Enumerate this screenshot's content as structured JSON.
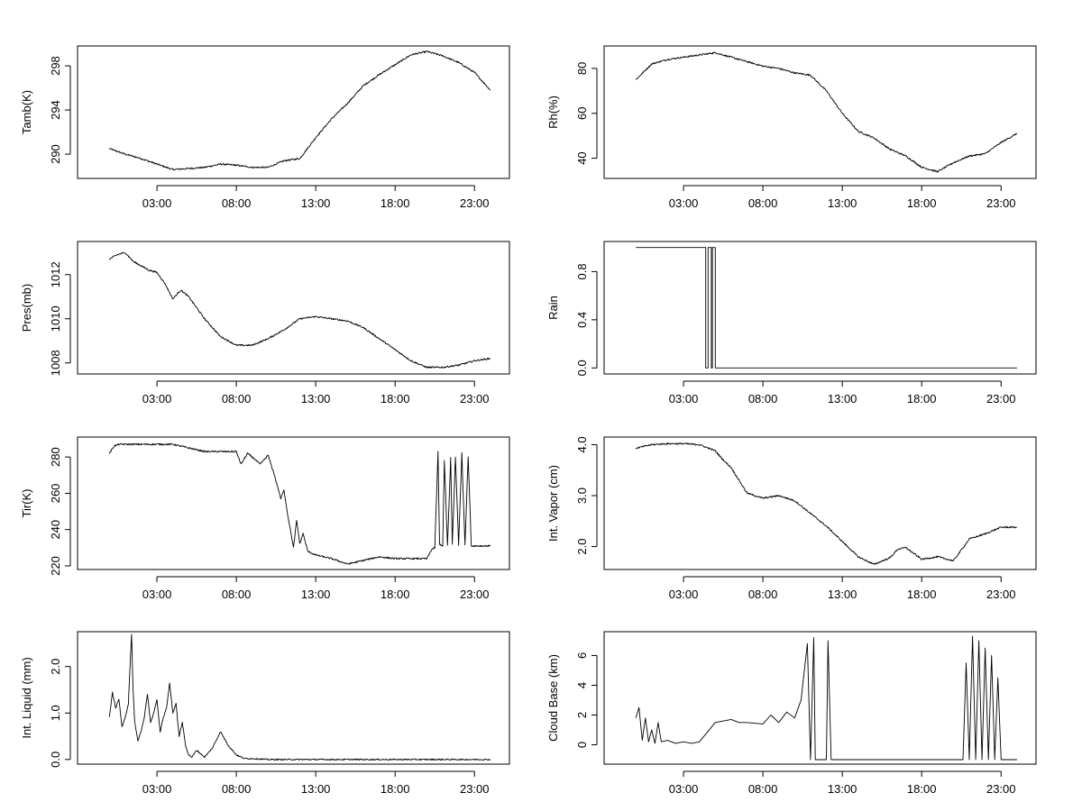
{
  "figure": {
    "description": "Eight stacked time-series panels (2 columns x 4 rows)"
  },
  "chart_data": [
    {
      "type": "line",
      "ylabel": "Tamb(K)",
      "ylim": [
        287.8,
        299.8
      ],
      "yticks": [
        290,
        294,
        298
      ],
      "yticklabels": [
        "290",
        "294",
        "298"
      ],
      "xlim": [
        -2.0,
        25.2
      ],
      "xticks": [
        3,
        8,
        13,
        18,
        23
      ],
      "xticklabels": [
        "03:00",
        "08:00",
        "13:00",
        "18:00",
        "23:00"
      ],
      "series": [
        {
          "name": "Tamb",
          "x": [
            0,
            1,
            2,
            3,
            4,
            5,
            6,
            7,
            8,
            9,
            10,
            11,
            12,
            13,
            14,
            15,
            16,
            17,
            18,
            19,
            20,
            21,
            22,
            23,
            24
          ],
          "y": [
            290.5,
            290.0,
            289.6,
            289.1,
            288.6,
            288.7,
            288.8,
            289.1,
            289.0,
            288.8,
            288.8,
            289.4,
            289.6,
            291.5,
            293.2,
            294.6,
            296.2,
            297.2,
            298.1,
            299.0,
            299.3,
            298.9,
            298.3,
            297.4,
            295.8
          ]
        }
      ]
    },
    {
      "type": "line",
      "ylabel": "Rh(%)",
      "ylim": [
        31,
        90
      ],
      "yticks": [
        40,
        60,
        80
      ],
      "yticklabels": [
        "40",
        "60",
        "80"
      ],
      "xlim": [
        -2.0,
        25.2
      ],
      "xticks": [
        3,
        8,
        13,
        18,
        23
      ],
      "xticklabels": [
        "03:00",
        "08:00",
        "13:00",
        "18:00",
        "23:00"
      ],
      "series": [
        {
          "name": "Rh",
          "x": [
            0,
            1,
            2,
            3,
            4,
            5,
            6,
            7,
            8,
            9,
            10,
            11,
            12,
            13,
            14,
            15,
            16,
            17,
            18,
            19,
            20,
            21,
            22,
            23,
            24
          ],
          "y": [
            75,
            82,
            84,
            85,
            86,
            87,
            85,
            83,
            81,
            80,
            78,
            77,
            70,
            60,
            52,
            49,
            44,
            41,
            36,
            34,
            38,
            41,
            42,
            47,
            51
          ]
        }
      ]
    },
    {
      "type": "line",
      "ylabel": "Pres(mb)",
      "ylim": [
        1007.5,
        1013.5
      ],
      "yticks": [
        1008,
        1010,
        1012
      ],
      "yticklabels": [
        "1008",
        "1010",
        "1012"
      ],
      "xlim": [
        -2.0,
        25.2
      ],
      "xticks": [
        3,
        8,
        13,
        18,
        23
      ],
      "xticklabels": [
        "03:00",
        "08:00",
        "13:00",
        "18:00",
        "23:00"
      ],
      "series": [
        {
          "name": "Pres",
          "x": [
            0,
            0.5,
            1,
            1.5,
            2,
            2.5,
            3,
            3.5,
            4,
            4.5,
            5,
            5.5,
            6,
            7,
            8,
            9,
            10,
            11,
            12,
            13,
            14,
            15,
            16,
            17,
            18,
            19,
            20,
            21,
            22,
            23,
            24
          ],
          "y": [
            1012.7,
            1012.9,
            1013.0,
            1012.6,
            1012.4,
            1012.2,
            1012.1,
            1011.6,
            1010.9,
            1011.3,
            1011.0,
            1010.5,
            1010.0,
            1009.2,
            1008.8,
            1008.8,
            1009.1,
            1009.5,
            1010.0,
            1010.1,
            1010.0,
            1009.9,
            1009.6,
            1009.1,
            1008.6,
            1008.1,
            1007.8,
            1007.8,
            1007.9,
            1008.1,
            1008.2
          ]
        }
      ]
    },
    {
      "type": "line",
      "ylabel": "Rain",
      "ylim": [
        -0.05,
        1.05
      ],
      "yticks": [
        0.0,
        0.4,
        0.8
      ],
      "yticklabels": [
        "0.0",
        "0.4",
        "0.8"
      ],
      "xlim": [
        -2.0,
        25.2
      ],
      "xticks": [
        3,
        8,
        13,
        18,
        23
      ],
      "xticklabels": [
        "03:00",
        "08:00",
        "13:00",
        "18:00",
        "23:00"
      ],
      "series": [
        {
          "name": "Rain",
          "x": [
            0,
            4.4,
            4.4,
            4.55,
            4.55,
            4.75,
            4.75,
            4.82,
            4.82,
            5.0,
            5.0,
            5.1,
            5.1,
            24
          ],
          "y": [
            1,
            1,
            0,
            0,
            1,
            1,
            0,
            0,
            1,
            1,
            0,
            0,
            0,
            0
          ]
        }
      ]
    },
    {
      "type": "line",
      "ylabel": "Tir(K)",
      "ylim": [
        218,
        291
      ],
      "yticks": [
        220,
        240,
        260,
        280
      ],
      "yticklabels": [
        "220",
        "240",
        "260",
        "280"
      ],
      "xlim": [
        -2.0,
        25.2
      ],
      "xticks": [
        3,
        8,
        13,
        18,
        23
      ],
      "xticklabels": [
        "03:00",
        "08:00",
        "13:00",
        "18:00",
        "23:00"
      ],
      "series": [
        {
          "name": "Tir",
          "x": [
            0,
            0.3,
            0.6,
            1,
            2,
            3,
            4,
            5,
            6,
            7,
            8,
            8.3,
            8.7,
            9,
            9.5,
            10,
            10.4,
            10.8,
            11,
            11.2,
            11.4,
            11.6,
            11.8,
            12,
            12.2,
            12.5,
            13,
            14,
            15,
            16,
            17,
            18,
            19,
            20,
            20.3,
            20.5,
            20.7,
            20.8,
            21,
            21.1,
            21.3,
            21.5,
            21.6,
            21.8,
            22,
            22.2,
            22.4,
            22.6,
            22.8,
            23,
            23.2,
            24
          ],
          "y": [
            282,
            286,
            287,
            287,
            287,
            287,
            287,
            285,
            283,
            283,
            283,
            276,
            282,
            280,
            276,
            281,
            270,
            257,
            262,
            250,
            240,
            230,
            245,
            232,
            238,
            228,
            226,
            224,
            221,
            223,
            225,
            224,
            224,
            224,
            229,
            230,
            283,
            232,
            231,
            278,
            231,
            280,
            232,
            280,
            231,
            282,
            232,
            280,
            231,
            231,
            231,
            231
          ]
        }
      ]
    },
    {
      "type": "line",
      "ylabel": "Int. Vapor (cm)",
      "ylim": [
        1.55,
        4.15
      ],
      "yticks": [
        2.0,
        3.0,
        4.0
      ],
      "yticklabels": [
        "2.0",
        "3.0",
        "4.0"
      ],
      "xlim": [
        -2.0,
        25.2
      ],
      "xticks": [
        3,
        8,
        13,
        18,
        23
      ],
      "xticklabels": [
        "03:00",
        "08:00",
        "13:00",
        "18:00",
        "23:00"
      ],
      "series": [
        {
          "name": "IntVapor",
          "x": [
            0,
            1,
            2,
            3,
            4,
            5,
            5.5,
            6,
            6.5,
            7,
            8,
            9,
            10,
            11,
            12,
            13,
            14,
            15,
            16,
            16.5,
            17,
            18,
            19,
            20,
            21,
            22,
            23,
            24
          ],
          "y": [
            3.93,
            4.0,
            4.02,
            4.02,
            4.0,
            3.88,
            3.7,
            3.55,
            3.3,
            3.05,
            2.95,
            3.0,
            2.9,
            2.65,
            2.4,
            2.1,
            1.8,
            1.65,
            1.78,
            1.95,
            1.98,
            1.75,
            1.8,
            1.72,
            2.15,
            2.25,
            2.38,
            2.38
          ]
        }
      ]
    },
    {
      "type": "line",
      "ylabel": "Int. Liquid (mm)",
      "ylim": [
        -0.1,
        2.75
      ],
      "yticks": [
        0.0,
        1.0,
        2.0
      ],
      "yticklabels": [
        "0.0",
        "1.0",
        "2.0"
      ],
      "xlim": [
        -2.0,
        25.2
      ],
      "xticks": [
        3,
        8,
        13,
        18,
        23
      ],
      "xticklabels": [
        "03:00",
        "08:00",
        "13:00",
        "18:00",
        "23:00"
      ],
      "series": [
        {
          "name": "IntLiquid",
          "x": [
            0,
            0.2,
            0.4,
            0.6,
            0.8,
            1,
            1.2,
            1.4,
            1.5,
            1.6,
            1.8,
            2,
            2.2,
            2.4,
            2.6,
            2.8,
            3,
            3.2,
            3.4,
            3.6,
            3.8,
            4,
            4.2,
            4.4,
            4.6,
            4.8,
            5,
            5.2,
            5.5,
            6,
            6.5,
            7,
            7.5,
            8,
            8.5,
            9,
            9.5,
            10,
            11,
            12,
            13,
            15,
            15.5,
            17,
            20.4,
            20.5,
            24
          ],
          "y": [
            0.9,
            1.45,
            1.1,
            1.3,
            0.7,
            0.9,
            1.2,
            2.7,
            1.5,
            0.8,
            0.4,
            0.6,
            0.9,
            1.4,
            0.8,
            1.0,
            1.3,
            0.6,
            0.9,
            1.1,
            1.65,
            1.0,
            1.2,
            0.5,
            0.8,
            0.3,
            0.1,
            0.05,
            0.2,
            0.05,
            0.25,
            0.6,
            0.3,
            0.1,
            0.02,
            0.02,
            0.01,
            0.0,
            0.0,
            0.0,
            0.0,
            0.0,
            0.0,
            0.0,
            0.0,
            0.0,
            0.0
          ]
        }
      ]
    },
    {
      "type": "line",
      "ylabel": "Cloud Base (km)",
      "ylim": [
        -1.3,
        7.6
      ],
      "yticks": [
        0,
        2,
        4,
        6
      ],
      "yticklabels": [
        "0",
        "2",
        "4",
        "6"
      ],
      "xlim": [
        -2.0,
        25.2
      ],
      "xticks": [
        3,
        8,
        13,
        18,
        23
      ],
      "xticklabels": [
        "03:00",
        "08:00",
        "13:00",
        "18:00",
        "23:00"
      ],
      "series": [
        {
          "name": "CloudBase",
          "x": [
            0,
            0.2,
            0.4,
            0.6,
            0.8,
            1,
            1.2,
            1.4,
            1.6,
            2,
            2.5,
            3,
            3.5,
            4,
            5,
            6,
            6.5,
            7,
            8,
            8.5,
            9,
            9.5,
            10,
            10.4,
            10.8,
            11,
            11.2,
            11.3,
            11.5,
            12,
            12.1,
            12.3,
            12.5,
            20.6,
            20.8,
            21,
            21.2,
            21.4,
            21.6,
            21.8,
            22,
            22.2,
            22.4,
            22.6,
            22.8,
            23,
            23.2,
            24
          ],
          "y": [
            1.8,
            2.5,
            0.3,
            1.8,
            0.2,
            1.0,
            0.1,
            1.5,
            0.2,
            0.3,
            0.1,
            0.2,
            0.1,
            0.2,
            1.5,
            1.7,
            1.5,
            1.5,
            1.4,
            2.0,
            1.5,
            2.2,
            1.8,
            3.0,
            6.8,
            -1.0,
            7.2,
            -1.0,
            -1.0,
            -1.0,
            7.0,
            -1.0,
            -1.0,
            -1.0,
            5.5,
            -1.0,
            7.3,
            -1.0,
            7.0,
            -1.0,
            6.5,
            -1.0,
            6.0,
            -1.0,
            4.5,
            -1.0,
            -1.0,
            -1.0
          ]
        }
      ]
    }
  ]
}
